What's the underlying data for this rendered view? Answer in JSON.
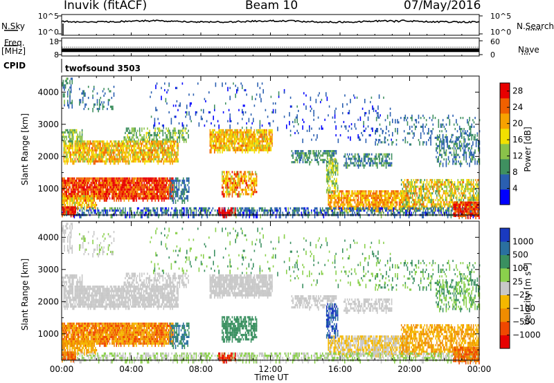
{
  "header": {
    "station": "Inuvik (fitACF)",
    "beam": "Beam 10",
    "date": "07/May/2016"
  },
  "labels": {
    "nsky": "N.Sky",
    "nsearch": "N.Search",
    "freq": "Freq.",
    "mhz": "[MHz]",
    "nave": "Nave",
    "cpid_label": "CPID",
    "cpid_value": "twofsound 3503",
    "dots_search": "·······",
    "dots_nave": "····"
  },
  "colors": {
    "power": [
      "#0000ff",
      "#2a5fb0",
      "#3f9060",
      "#8ac24a",
      "#f2e000",
      "#f7a200",
      "#f06000",
      "#e80000"
    ],
    "velocity": [
      "#e60000",
      "#f04800",
      "#f08c00",
      "#f5b800",
      "#c8c8c8",
      "#8ad04c",
      "#3a9060",
      "#2a70a0",
      "#1a3ac0"
    ]
  },
  "chart_data": [
    {
      "type": "line",
      "name": "noise-panel",
      "ylabel_left": "N.Sky",
      "ylabel_right": "N.Search",
      "yticks_left": [
        "10^5",
        "10^0"
      ],
      "yticks_right": [
        "10^5",
        "10^0"
      ],
      "x_hours": [
        0,
        24
      ]
    },
    {
      "type": "line",
      "name": "frequency-panel",
      "ylabel_left": "Freq. [MHz]",
      "ylabel_right": "Nave",
      "yticks_left": [
        18,
        8
      ],
      "yticks_right": [
        60,
        0
      ],
      "ylim_left": [
        8,
        18
      ],
      "ylim_right": [
        0,
        60
      ],
      "freq_mhz": 11,
      "nave": 24
    },
    {
      "type": "heatmap",
      "name": "power-panel",
      "ylabel": "Slant Range [km]",
      "yticks": [
        1000,
        2000,
        3000,
        4000
      ],
      "ylim": [
        180,
        4500
      ],
      "x_hours": [
        0,
        24
      ],
      "colorbar_label": "Power [dB]",
      "colorbar_ticks": [
        4,
        8,
        12,
        16,
        20,
        24,
        28
      ],
      "colorbar_range": [
        0,
        30
      ]
    },
    {
      "type": "heatmap",
      "name": "velocity-panel",
      "ylabel": "Slant Range [km]",
      "yticks": [
        1000,
        2000,
        3000,
        4000
      ],
      "ylim": [
        180,
        4500
      ],
      "x_hours": [
        0,
        24
      ],
      "xlabel": "Time UT",
      "xticks": [
        "00:00",
        "04:00",
        "08:00",
        "12:00",
        "16:00",
        "20:00",
        "00:00"
      ],
      "colorbar_label": "Velocity [m s",
      "colorbar_label_sup": "-1",
      "colorbar_label_end": "]",
      "colorbar_ticks": [
        "1000",
        "500",
        "100",
        "25",
        "−25",
        "−100",
        "−500",
        "−1000"
      ]
    }
  ]
}
